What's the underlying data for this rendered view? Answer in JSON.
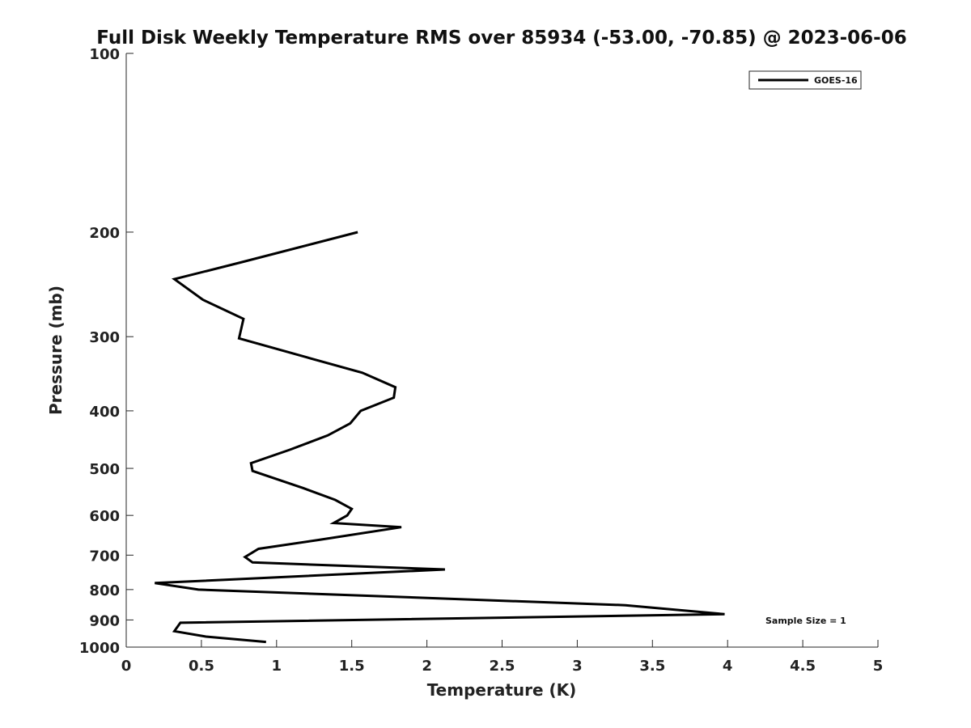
{
  "chart_data": {
    "type": "line",
    "title": "Full Disk Weekly Temperature RMS over 85934 (-53.00, -70.85) @ 2023-06-06",
    "xlabel": "Temperature (K)",
    "ylabel": "Pressure (mb)",
    "xlim": [
      0,
      5
    ],
    "ylim": [
      1000,
      100
    ],
    "y_scale": "log",
    "y_reversed": true,
    "x_ticks": [
      "0",
      "0.5",
      "1",
      "1.5",
      "2",
      "2.5",
      "3",
      "3.5",
      "4",
      "4.5",
      "5"
    ],
    "x_tick_values": [
      0,
      0.5,
      1,
      1.5,
      2,
      2.5,
      3,
      3.5,
      4,
      4.5,
      5
    ],
    "y_ticks": [
      "100",
      "200",
      "300",
      "400",
      "500",
      "600",
      "700",
      "800",
      "900",
      "1000"
    ],
    "y_tick_values": [
      100,
      200,
      300,
      400,
      500,
      600,
      700,
      800,
      900,
      1000
    ],
    "grid": false,
    "legend_position": "top-right",
    "series": [
      {
        "name": "GOES-16",
        "color": "#000000",
        "x": [
          1.54,
          0.76,
          0.32,
          0.51,
          0.78,
          0.75,
          1.2,
          1.57,
          1.79,
          1.78,
          1.56,
          1.49,
          1.34,
          1.09,
          0.83,
          0.84,
          1.18,
          1.39,
          1.5,
          1.47,
          1.38,
          1.83,
          1.28,
          0.88,
          0.79,
          0.84,
          2.12,
          0.19,
          0.48,
          3.32,
          3.98,
          0.36,
          0.32,
          0.53,
          0.93
        ],
        "y": [
          200,
          225,
          240,
          260,
          280,
          302,
          325,
          345,
          365,
          380,
          400,
          420,
          440,
          465,
          490,
          505,
          540,
          565,
          585,
          600,
          618,
          628,
          660,
          683,
          705,
          720,
          740,
          780,
          800,
          850,
          880,
          910,
          940,
          960,
          980
        ]
      }
    ],
    "annotations": [
      "Sample Size = 1"
    ]
  }
}
